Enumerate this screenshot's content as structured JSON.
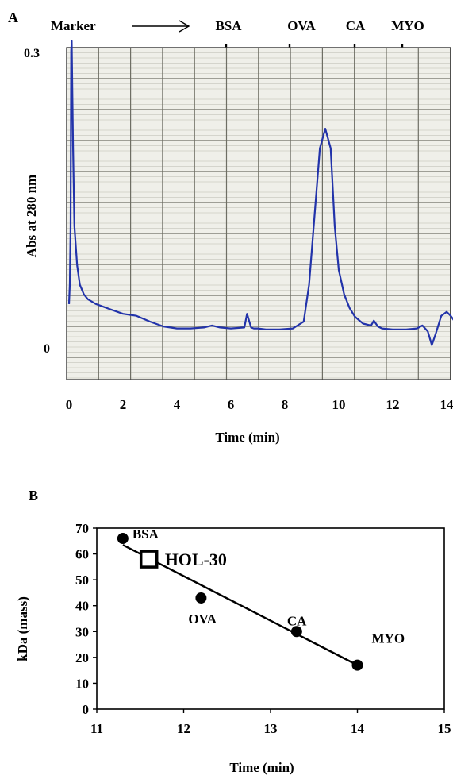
{
  "panels": {
    "a_label": "A",
    "b_label": "B"
  },
  "chart_data": [
    {
      "type": "line",
      "panel": "A",
      "xlabel": "Time (min)",
      "ylabel": "Abs at 280 nm",
      "xlim": [
        0,
        14.5
      ],
      "ylim": [
        -0.01,
        0.3
      ],
      "x_ticks": [
        "0",
        "2",
        "4",
        "6",
        "8",
        "10",
        "12",
        "14"
      ],
      "y_ticks": [
        {
          "value": 0,
          "label": "0"
        },
        {
          "value": 0.3,
          "label": "0.3"
        }
      ],
      "grid": true,
      "marker_label": "Marker",
      "markers": [
        {
          "name": "BSA",
          "x": 6.6
        },
        {
          "name": "OVA",
          "x": 9.0
        },
        {
          "name": "CA",
          "x": 11.5
        },
        {
          "name": "MYO",
          "x": 13.4
        }
      ],
      "line_color": "#2233aa",
      "series": [
        {
          "x": [
            0,
            0.03,
            0.06,
            0.08,
            0.1,
            0.15,
            0.2,
            0.3,
            0.4,
            0.55,
            0.7,
            1.0,
            1.5,
            2.0,
            2.5,
            3.0,
            3.5,
            4.0,
            4.5,
            5.0,
            5.3,
            5.6,
            6.0,
            6.5,
            6.6,
            6.75,
            6.85,
            7.0,
            7.3,
            7.8,
            8.3,
            8.7,
            8.9,
            9.1,
            9.3,
            9.5,
            9.7,
            9.85,
            10.0,
            10.2,
            10.4,
            10.6,
            10.9,
            11.2,
            11.3,
            11.45,
            11.6,
            12.0,
            12.5,
            12.9,
            13.1,
            13.3,
            13.45,
            13.6,
            13.8,
            14.0,
            14.15,
            14.3,
            14.5
          ],
          "y": [
            0.04,
            0.06,
            0.12,
            0.3,
            0.31,
            0.2,
            0.12,
            0.08,
            0.06,
            0.05,
            0.045,
            0.04,
            0.035,
            0.03,
            0.028,
            0.022,
            0.017,
            0.015,
            0.015,
            0.016,
            0.018,
            0.016,
            0.015,
            0.016,
            0.03,
            0.016,
            0.015,
            0.015,
            0.014,
            0.014,
            0.015,
            0.022,
            0.06,
            0.13,
            0.2,
            0.22,
            0.2,
            0.12,
            0.075,
            0.05,
            0.036,
            0.027,
            0.02,
            0.018,
            0.023,
            0.017,
            0.015,
            0.014,
            0.014,
            0.015,
            0.018,
            0.012,
            -0.002,
            0.01,
            0.028,
            0.032,
            0.028,
            0.022,
            0.02
          ]
        }
      ]
    },
    {
      "type": "scatter",
      "panel": "B",
      "xlabel": "Time (min)",
      "ylabel": "kDa (mass)",
      "xlim": [
        11,
        15
      ],
      "ylim": [
        0,
        70
      ],
      "x_ticks": [
        "11",
        "12",
        "13",
        "14",
        "15"
      ],
      "y_ticks": [
        "0",
        "10",
        "20",
        "30",
        "40",
        "50",
        "60",
        "70"
      ],
      "grid": false,
      "points": [
        {
          "label": "BSA",
          "x": 11.3,
          "y": 66
        },
        {
          "label": "OVA",
          "x": 12.2,
          "y": 43
        },
        {
          "label": "CA",
          "x": 13.3,
          "y": 30
        },
        {
          "label": "MYO",
          "x": 14.0,
          "y": 17
        }
      ],
      "unknown": {
        "label": "HOL-30",
        "x": 11.6,
        "y": 58
      },
      "fit_line": {
        "x": [
          11.3,
          14.0
        ],
        "y": [
          63.5,
          17
        ]
      }
    }
  ]
}
